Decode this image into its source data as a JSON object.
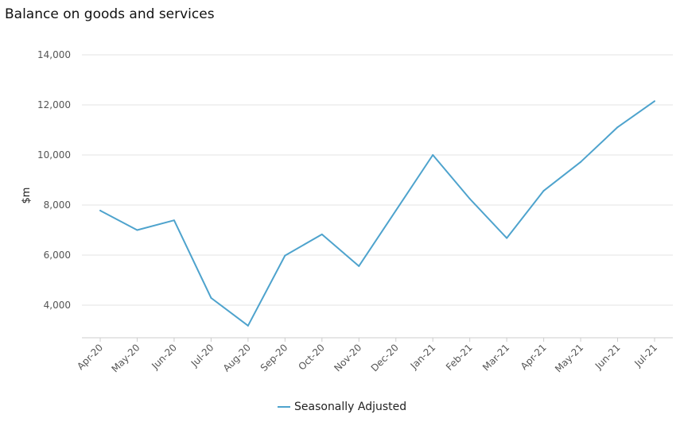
{
  "chart_data": {
    "type": "line",
    "title": "Balance on goods and services",
    "xlabel": "",
    "ylabel": "$m",
    "categories": [
      "Apr-20",
      "May-20",
      "Jun-20",
      "Jul-20",
      "Aug-20",
      "Sep-20",
      "Oct-20",
      "Nov-20",
      "Dec-20",
      "Jan-21",
      "Feb-21",
      "Mar-21",
      "Apr-21",
      "May-21",
      "Jun-21",
      "Jul-21"
    ],
    "series": [
      {
        "name": "Seasonally Adjusted",
        "color": "#4ea3cd",
        "values": [
          7780,
          7000,
          7390,
          4290,
          3180,
          5980,
          6830,
          5560,
          7780,
          10000,
          8250,
          6680,
          8570,
          9720,
          11110,
          12150
        ]
      }
    ],
    "yticks": [
      "4,000",
      "6,000",
      "8,000",
      "10,000",
      "12,000",
      "14,000"
    ],
    "ytick_values": [
      4000,
      6000,
      8000,
      10000,
      12000,
      14000
    ],
    "ylim": [
      2730,
      14000
    ],
    "grid": true,
    "legend": "bottom"
  }
}
